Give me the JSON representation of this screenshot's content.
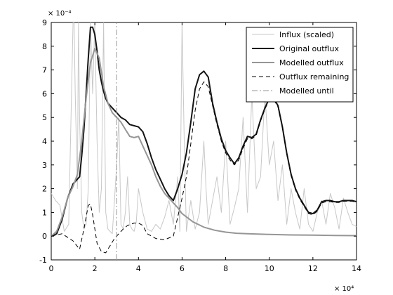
{
  "chart_data": {
    "type": "line",
    "title": "",
    "xlabel": "",
    "ylabel": "",
    "x_multiplier": "× 10⁴",
    "y_multiplier": "× 10⁻⁴",
    "xlim": [
      0,
      14
    ],
    "ylim": [
      -1,
      9
    ],
    "x_ticks": [
      0,
      2,
      4,
      6,
      8,
      10,
      12,
      14
    ],
    "y_ticks": [
      -1,
      0,
      1,
      2,
      3,
      4,
      5,
      6,
      7,
      8,
      9
    ],
    "grid": false,
    "legend_position": "top-right",
    "series": [
      {
        "name": "Influx (scaled)",
        "color": "#c8c8c8",
        "style": "solid",
        "x": [
          0,
          0.2,
          0.4,
          0.6,
          0.8,
          1.0,
          1.05,
          1.1,
          1.2,
          1.25,
          1.3,
          1.4,
          1.5,
          1.6,
          1.7,
          1.8,
          1.9,
          2.0,
          2.1,
          2.2,
          2.3,
          2.4,
          2.5,
          2.6,
          2.7,
          2.8,
          2.9,
          3.0,
          3.1,
          3.2,
          3.3,
          3.4,
          3.5,
          3.6,
          3.7,
          3.8,
          3.9,
          4.0,
          4.2,
          4.4,
          4.6,
          4.8,
          5.0,
          5.2,
          5.4,
          5.6,
          5.8,
          5.9,
          6.0,
          6.1,
          6.2,
          6.4,
          6.6,
          6.8,
          7.0,
          7.1,
          7.2,
          7.4,
          7.6,
          7.8,
          8.0,
          8.2,
          8.4,
          8.6,
          8.8,
          9.0,
          9.2,
          9.4,
          9.6,
          9.8,
          10.0,
          10.2,
          10.4,
          10.6,
          10.8,
          11.0,
          11.2,
          11.4,
          11.6,
          11.8,
          12.0,
          12.2,
          12.4,
          12.6,
          12.8,
          13.0,
          13.2,
          13.4,
          13.6,
          13.8,
          14.0
        ],
        "y": [
          1.8,
          1.5,
          1.3,
          0.2,
          0.5,
          9.0,
          9.0,
          6.0,
          2.0,
          9.0,
          5.0,
          1.0,
          0.3,
          0.5,
          2.0,
          9.0,
          6.0,
          9.0,
          4.0,
          1.0,
          2.0,
          9.0,
          1.0,
          0.3,
          0.2,
          0.1,
          1.5,
          3.0,
          5.0,
          0.5,
          0.3,
          1.0,
          2.5,
          0.5,
          0.3,
          0.2,
          0.6,
          2.0,
          1.0,
          0.3,
          0.2,
          0.5,
          0.3,
          0.8,
          1.5,
          0.5,
          2.5,
          0.2,
          9.0,
          4.0,
          0.2,
          1.5,
          0.3,
          1.0,
          4.0,
          2.0,
          0.5,
          1.5,
          2.5,
          1.0,
          4.0,
          0.5,
          1.2,
          2.0,
          5.0,
          1.0,
          6.0,
          2.0,
          2.5,
          6.0,
          3.0,
          4.0,
          1.5,
          3.0,
          0.5,
          2.0,
          1.0,
          0.3,
          2.0,
          0.5,
          0.2,
          1.0,
          1.5,
          0.5,
          1.8,
          1.2,
          0.3,
          1.6,
          1.0,
          0.5,
          0.4
        ]
      },
      {
        "name": "Original outflux",
        "color": "#141414",
        "style": "solid",
        "x": [
          0,
          0.25,
          0.5,
          0.75,
          1.0,
          1.2,
          1.3,
          1.4,
          1.5,
          1.6,
          1.7,
          1.8,
          1.9,
          2.0,
          2.1,
          2.2,
          2.3,
          2.4,
          2.5,
          2.6,
          2.8,
          3.0,
          3.2,
          3.4,
          3.6,
          3.8,
          4.0,
          4.2,
          4.4,
          4.6,
          4.8,
          5.0,
          5.2,
          5.4,
          5.6,
          5.8,
          6.0,
          6.2,
          6.4,
          6.6,
          6.8,
          7.0,
          7.2,
          7.4,
          7.6,
          7.8,
          8.0,
          8.2,
          8.4,
          8.6,
          8.8,
          9.0,
          9.2,
          9.4,
          9.6,
          9.8,
          10.0,
          10.2,
          10.4,
          10.6,
          10.8,
          11.0,
          11.2,
          11.4,
          11.6,
          11.8,
          12.0,
          12.2,
          12.4,
          12.6,
          12.8,
          13.0,
          13.2,
          13.4,
          13.6,
          13.8,
          14.0
        ],
        "y": [
          0,
          0.1,
          0.7,
          1.6,
          2.2,
          2.4,
          2.5,
          3.4,
          4.5,
          6.0,
          7.5,
          8.8,
          8.8,
          8.5,
          7.8,
          7.0,
          6.5,
          6.1,
          5.8,
          5.6,
          5.4,
          5.2,
          5.0,
          4.9,
          4.7,
          4.65,
          4.6,
          4.4,
          3.9,
          3.3,
          2.8,
          2.4,
          2.0,
          1.7,
          1.5,
          2.0,
          2.6,
          3.5,
          4.8,
          6.2,
          6.8,
          6.95,
          6.7,
          5.6,
          4.8,
          4.1,
          3.6,
          3.3,
          3.05,
          3.3,
          3.8,
          4.2,
          4.15,
          4.3,
          4.9,
          5.4,
          5.8,
          5.8,
          5.5,
          4.6,
          3.5,
          2.6,
          2.0,
          1.6,
          1.3,
          1.0,
          0.95,
          1.1,
          1.45,
          1.5,
          1.5,
          1.45,
          1.45,
          1.5,
          1.5,
          1.5,
          1.45
        ]
      },
      {
        "name": "Modelled outflux",
        "color": "#969696",
        "style": "solid",
        "x": [
          0,
          0.25,
          0.5,
          0.75,
          1.0,
          1.2,
          1.4,
          1.6,
          1.8,
          2.0,
          2.2,
          2.4,
          2.6,
          2.8,
          3.0,
          3.2,
          3.4,
          3.6,
          3.8,
          4.0,
          4.2,
          4.4,
          4.6,
          4.8,
          5.0,
          5.2,
          5.4,
          5.6,
          5.8,
          6.0,
          6.5,
          7.0,
          7.5,
          8.0,
          8.5,
          9.0,
          10.0,
          11.0,
          12.0,
          13.0,
          14.0
        ],
        "y": [
          0,
          0.2,
          0.8,
          1.6,
          2.1,
          2.6,
          4.0,
          5.8,
          7.3,
          7.9,
          7.5,
          6.3,
          5.6,
          5.2,
          5.0,
          4.8,
          4.5,
          4.2,
          4.15,
          4.2,
          3.8,
          3.4,
          3.0,
          2.5,
          2.1,
          1.8,
          1.6,
          1.4,
          1.2,
          0.95,
          0.6,
          0.38,
          0.25,
          0.17,
          0.12,
          0.1,
          0.07,
          0.05,
          0.04,
          0.03,
          0.02
        ]
      },
      {
        "name": "Outflux remaining",
        "color": "#000000",
        "style": "dashed",
        "x": [
          0,
          0.5,
          1.0,
          1.3,
          1.5,
          1.7,
          1.8,
          1.9,
          2.1,
          2.3,
          2.5,
          2.7,
          2.9,
          3.1,
          3.3,
          3.5,
          3.8,
          4.0,
          4.2,
          4.4,
          4.8,
          5.2,
          5.6,
          5.8,
          6.0,
          6.2,
          6.4,
          6.6,
          6.8,
          7.0,
          7.2,
          7.4,
          7.6,
          7.8,
          8.0,
          8.2,
          8.4,
          8.6,
          8.8,
          9.0,
          9.2,
          9.4,
          9.6,
          9.8,
          10.0,
          10.2,
          10.4,
          10.6,
          10.8,
          11.0,
          11.2,
          11.4,
          11.6,
          11.8,
          12.0,
          12.2,
          12.4,
          12.6,
          12.8,
          13.0,
          13.2,
          13.4,
          13.6,
          13.8,
          14.0
        ],
        "y": [
          0,
          0.1,
          -0.2,
          -0.55,
          0.3,
          1.3,
          1.35,
          0.9,
          -0.3,
          -0.65,
          -0.7,
          -0.4,
          -0.1,
          0.1,
          0.3,
          0.45,
          0.55,
          0.55,
          0.45,
          0.1,
          -0.1,
          -0.15,
          0.0,
          0.8,
          1.6,
          2.5,
          3.9,
          5.3,
          6.2,
          6.5,
          6.3,
          5.5,
          4.7,
          4.0,
          3.5,
          3.2,
          3.0,
          3.2,
          3.7,
          4.1,
          4.1,
          4.25,
          4.85,
          5.35,
          5.75,
          5.75,
          5.45,
          4.55,
          3.45,
          2.55,
          1.95,
          1.55,
          1.25,
          0.95,
          0.9,
          1.05,
          1.4,
          1.45,
          1.45,
          1.42,
          1.42,
          1.47,
          1.47,
          1.47,
          1.43
        ]
      },
      {
        "name": "Modelled until",
        "color": "#969696",
        "style": "dashdot",
        "x": [
          3.0,
          3.0
        ],
        "y": [
          -1,
          9
        ]
      }
    ]
  }
}
